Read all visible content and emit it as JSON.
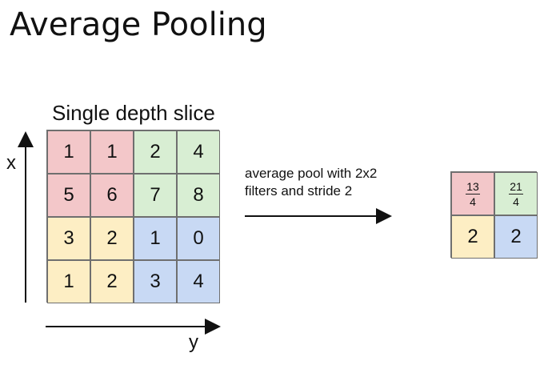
{
  "title": "Average Pooling",
  "slice_label": "Single depth slice",
  "x_label": "x",
  "y_label": "y",
  "operation": {
    "line1": "average pool with 2x2",
    "line2": "filters and stride 2"
  },
  "input": {
    "rows": [
      [
        "1",
        "1",
        "2",
        "4"
      ],
      [
        "5",
        "6",
        "7",
        "8"
      ],
      [
        "3",
        "2",
        "1",
        "0"
      ],
      [
        "1",
        "2",
        "3",
        "4"
      ]
    ]
  },
  "output": {
    "top_left": {
      "num": "13",
      "den": "4"
    },
    "top_right": {
      "num": "21",
      "den": "4"
    },
    "bottom_left": "2",
    "bottom_right": "2"
  },
  "colors": {
    "red": "#f3c7c9",
    "green": "#d8eed3",
    "yellow": "#fdeec4",
    "blue": "#c8d9f4"
  }
}
